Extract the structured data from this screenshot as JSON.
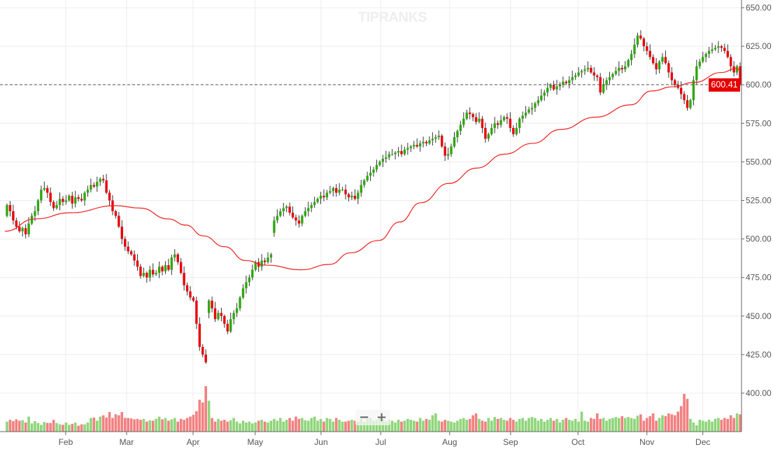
{
  "chart_data": {
    "type": "candlestick",
    "title": "",
    "watermark": "TIPRANKS",
    "ylim": [
      400,
      650
    ],
    "y_ticks": [
      "650.00",
      "625.00",
      "600.00",
      "575.00",
      "550.00",
      "525.00",
      "500.00",
      "475.00",
      "450.00",
      "425.00",
      "400.00"
    ],
    "y_tick_values": [
      650,
      625,
      600,
      575,
      550,
      525,
      500,
      475,
      450,
      425,
      400
    ],
    "x_ticks": [
      {
        "label": "Feb",
        "index": 18.9
      },
      {
        "label": "Mar",
        "index": 38.5
      },
      {
        "label": "Apr",
        "index": 59.9
      },
      {
        "label": "May",
        "index": 79.9
      },
      {
        "label": "Jun",
        "index": 101.1
      },
      {
        "label": "Jul",
        "index": 120.3
      },
      {
        "label": "Aug",
        "index": 142.5
      },
      {
        "label": "Sep",
        "index": 162.1
      },
      {
        "label": "Oct",
        "index": 183.8
      },
      {
        "label": "Nov",
        "index": 206
      },
      {
        "label": "Dec",
        "index": 224
      }
    ],
    "last_price": "600.41",
    "first_open": 515,
    "close": [
      522,
      518,
      512,
      508,
      505,
      507,
      503,
      510,
      515,
      518,
      525,
      532,
      533,
      530,
      524,
      520,
      522,
      526,
      524,
      525,
      528,
      523,
      527,
      526,
      525,
      530,
      532,
      535,
      534,
      537,
      539,
      538,
      530,
      525,
      518,
      515,
      508,
      500,
      495,
      492,
      490,
      486,
      482,
      476,
      478,
      475,
      480,
      477,
      478,
      482,
      479,
      483,
      480,
      488,
      490,
      485,
      478,
      470,
      466,
      462,
      460,
      445,
      430,
      425,
      420,
      460,
      455,
      448,
      452,
      450,
      445,
      440,
      448,
      452,
      455,
      462,
      468,
      472,
      475,
      480,
      485,
      482,
      486,
      485,
      488,
      490,
      512,
      515,
      518,
      520,
      521,
      517,
      514,
      512,
      510,
      515,
      518,
      520,
      522,
      524,
      526,
      528,
      527,
      530,
      531,
      533,
      530,
      532,
      532,
      529,
      527,
      528,
      526,
      530,
      535,
      538,
      541,
      543,
      545,
      548,
      550,
      552,
      553,
      555,
      555,
      556,
      557,
      555,
      558,
      559,
      560,
      561,
      560,
      562,
      563,
      562,
      564,
      565,
      566,
      567,
      560,
      554,
      555,
      560,
      566,
      570,
      574,
      578,
      582,
      581,
      579,
      576,
      578,
      572,
      565,
      568,
      572,
      575,
      574,
      577,
      579,
      578,
      572,
      568,
      572,
      578,
      580,
      582,
      584,
      585,
      588,
      590,
      593,
      595,
      598,
      600,
      597,
      599,
      600,
      602,
      601,
      603,
      605,
      606,
      608,
      609,
      610,
      611,
      608,
      606,
      605,
      595,
      600,
      603,
      605,
      607,
      609,
      611,
      610,
      612,
      616,
      620,
      626,
      632,
      630,
      625,
      622,
      618,
      614,
      610,
      615,
      618,
      614,
      608,
      603,
      600,
      598,
      594,
      590,
      585,
      590,
      603,
      612,
      615,
      618,
      620,
      622,
      623,
      624,
      625,
      624,
      622,
      618,
      612,
      608,
      612,
      600.41
    ],
    "volume_max": 100,
    "volume": [
      22,
      26,
      23,
      27,
      24,
      25,
      20,
      33,
      18,
      23,
      19,
      15,
      21,
      19,
      19,
      26,
      19,
      16,
      15,
      20,
      15,
      17,
      20,
      13,
      16,
      16,
      20,
      30,
      31,
      24,
      33,
      36,
      31,
      43,
      30,
      38,
      36,
      43,
      30,
      30,
      29,
      27,
      28,
      26,
      28,
      22,
      25,
      24,
      28,
      33,
      27,
      30,
      24,
      27,
      30,
      22,
      28,
      26,
      30,
      33,
      37,
      45,
      70,
      64,
      100,
      68,
      30,
      22,
      28,
      24,
      26,
      22,
      25,
      30,
      22,
      18,
      24,
      20,
      22,
      18,
      20,
      24,
      26,
      22,
      20,
      24,
      28,
      24,
      30,
      22,
      26,
      30,
      24,
      33,
      28,
      30,
      25,
      24,
      30,
      33,
      24,
      28,
      22,
      30,
      28,
      22,
      30,
      26,
      22,
      22,
      24,
      26,
      24,
      22,
      28,
      22,
      28,
      30,
      24,
      26,
      32,
      27,
      22,
      26,
      24,
      20,
      26,
      22,
      24,
      28,
      26,
      24,
      22,
      30,
      24,
      28,
      26,
      36,
      40,
      24,
      22,
      26,
      24,
      22,
      20,
      24,
      28,
      30,
      26,
      28,
      36,
      40,
      28,
      24,
      22,
      30,
      24,
      32,
      28,
      30,
      26,
      24,
      30,
      26,
      22,
      28,
      30,
      24,
      30,
      32,
      30,
      24,
      28,
      22,
      26,
      30,
      24,
      28,
      20,
      26,
      30,
      26,
      24,
      28,
      22,
      44,
      24,
      22,
      30,
      28,
      40,
      28,
      30,
      24,
      28,
      30,
      32,
      30,
      34,
      30,
      32,
      30,
      28,
      35,
      38,
      24,
      30,
      34,
      40,
      24,
      30,
      36,
      34,
      40,
      38,
      36,
      44,
      56,
      83,
      72,
      28,
      20,
      14,
      26,
      24,
      22,
      26,
      22,
      28,
      30,
      26,
      30,
      28,
      36,
      30,
      40,
      38
    ],
    "moving_average": [
      [
        -0.7,
        505
      ],
      [
        9.1,
        513
      ],
      [
        20.4,
        517
      ],
      [
        35,
        521.6
      ],
      [
        42.9,
        520
      ],
      [
        51.9,
        513
      ],
      [
        57.6,
        509
      ],
      [
        63.2,
        502
      ],
      [
        70,
        495
      ],
      [
        76.8,
        486
      ],
      [
        83.5,
        483
      ],
      [
        94.8,
        480
      ],
      [
        103.8,
        483.5
      ],
      [
        110.6,
        491
      ],
      [
        119.6,
        499
      ],
      [
        126.4,
        511
      ],
      [
        133.2,
        523.5
      ],
      [
        142.2,
        536
      ],
      [
        151.2,
        546
      ],
      [
        160.2,
        555
      ],
      [
        169.2,
        562
      ],
      [
        178.2,
        571
      ],
      [
        189.5,
        579
      ],
      [
        200.8,
        587
      ],
      [
        207.5,
        596
      ],
      [
        214.3,
        598.7
      ],
      [
        221.1,
        601.5
      ],
      [
        230.1,
        608
      ],
      [
        234.6,
        610.5
      ],
      [
        236,
        609.6
      ]
    ],
    "colors": {
      "up": "#2fa70f",
      "down": "#ea0008",
      "up_volume": "#8fd57a",
      "down_volume": "#f28080",
      "ma": "#f02020",
      "wick": "#333333",
      "grid": "#ececec"
    }
  },
  "controls": {
    "zoom_out": "−",
    "zoom_in": "+"
  }
}
